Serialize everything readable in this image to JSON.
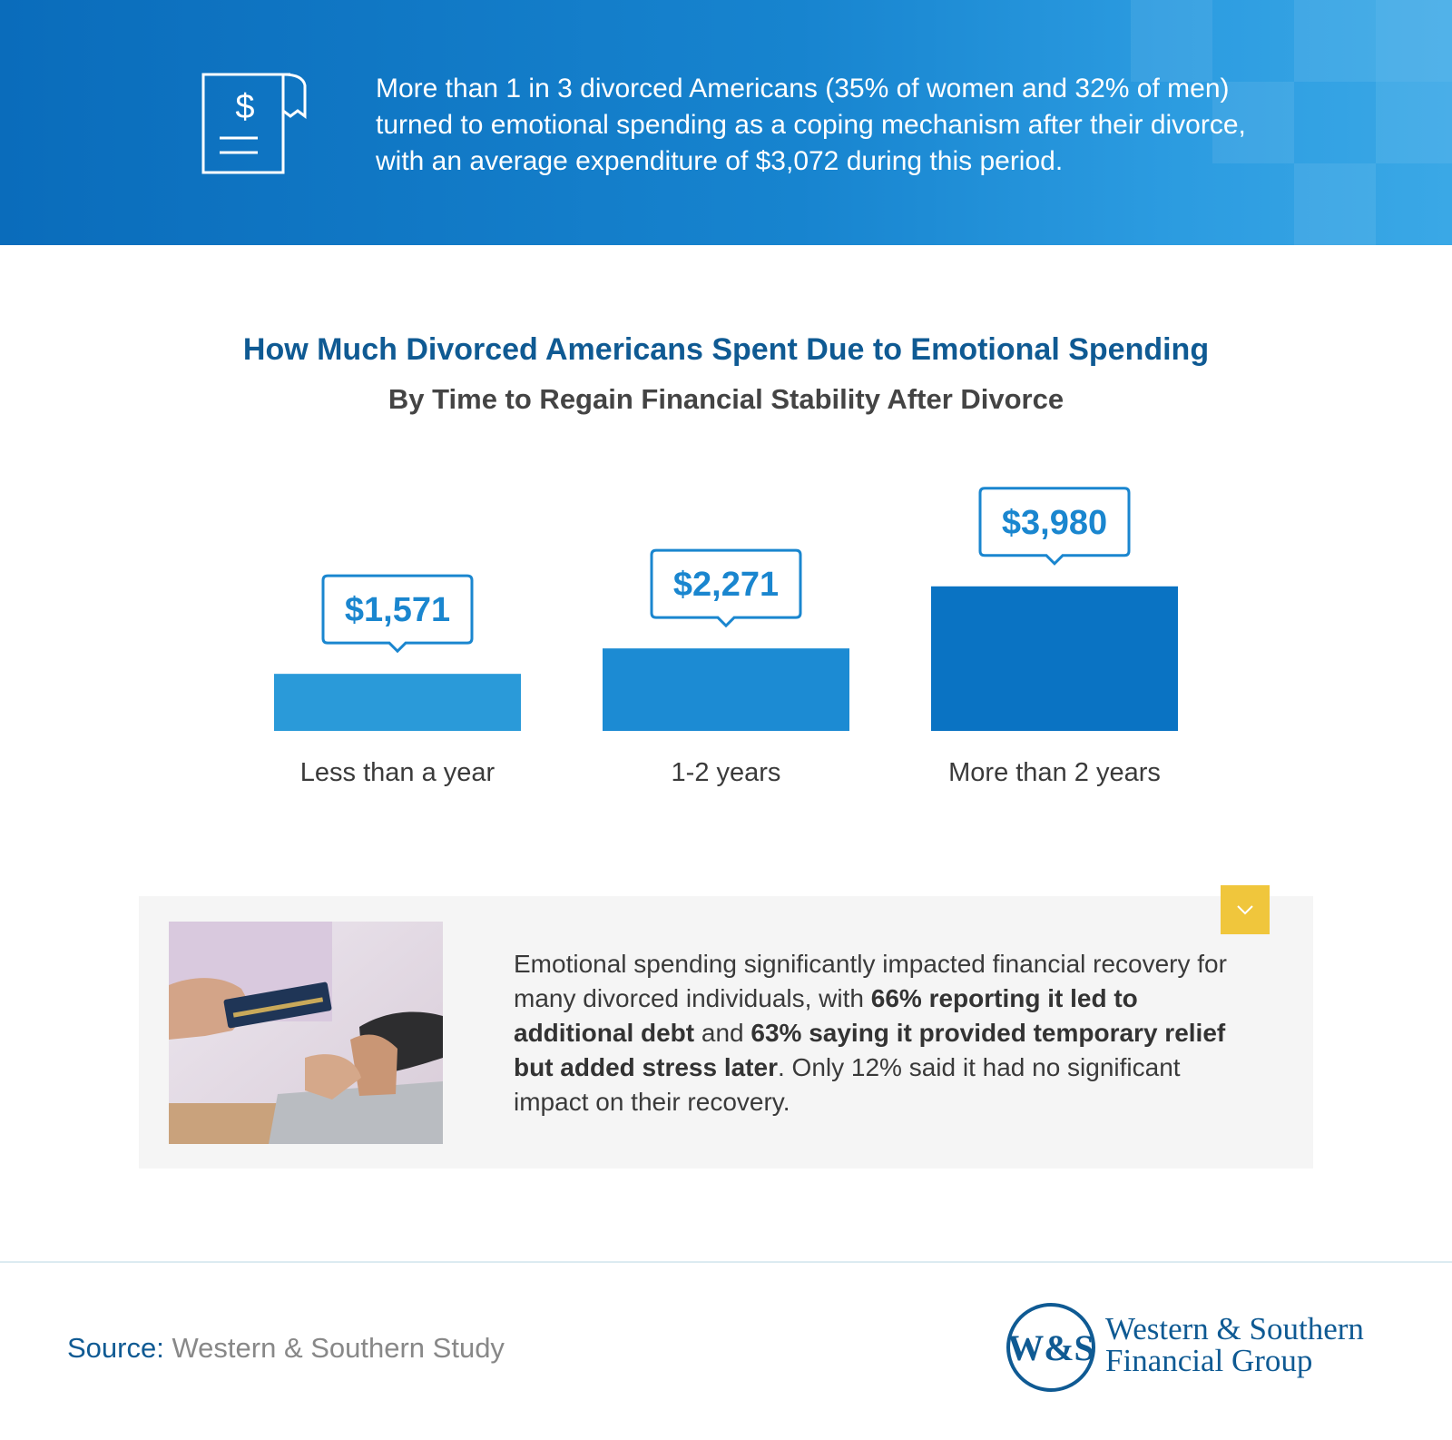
{
  "banner": {
    "text": "More than 1 in 3 divorced Americans (35% of women and 32% of men) turned to emotional spending as a coping mechanism after their divorce, with an average expenditure of $3,072 during this period.",
    "icon": "receipt-dollar-icon"
  },
  "chart_data": {
    "type": "bar",
    "title": "How Much Divorced Americans Spent Due to Emotional Spending",
    "subtitle": "By Time to Regain Financial Stability After Divorce",
    "categories": [
      "Less than a year",
      "1-2 years",
      "More than 2 years"
    ],
    "values": [
      1571,
      2271,
      3980
    ],
    "value_labels": [
      "$1,571",
      "$2,271",
      "$3,980"
    ],
    "colors": [
      "#2a9ad9",
      "#1c8bd3",
      "#0a73c3"
    ],
    "grid": false,
    "legend": "none"
  },
  "panel": {
    "text_1": "Emotional spending significantly impacted financial recovery for many divorced individuals, with ",
    "bold_1": "66% reporting it led to additional debt",
    "text_2": " and ",
    "bold_2": "63% saying it provided temporary relief but added stress later",
    "text_3": ". Only 12% said it had no significant impact on their recovery.",
    "photo": "credit-card-phone-photo",
    "chevron_icon": "chevron-down-icon",
    "accent_color": "#f0c63c"
  },
  "footer": {
    "source_label": "Source:",
    "source_value": "Western & Southern Study",
    "logo_monogram": "W&S",
    "logo_line1": "Western & Southern",
    "logo_line2": "Financial Group",
    "brand_color": "#0f5a93"
  }
}
